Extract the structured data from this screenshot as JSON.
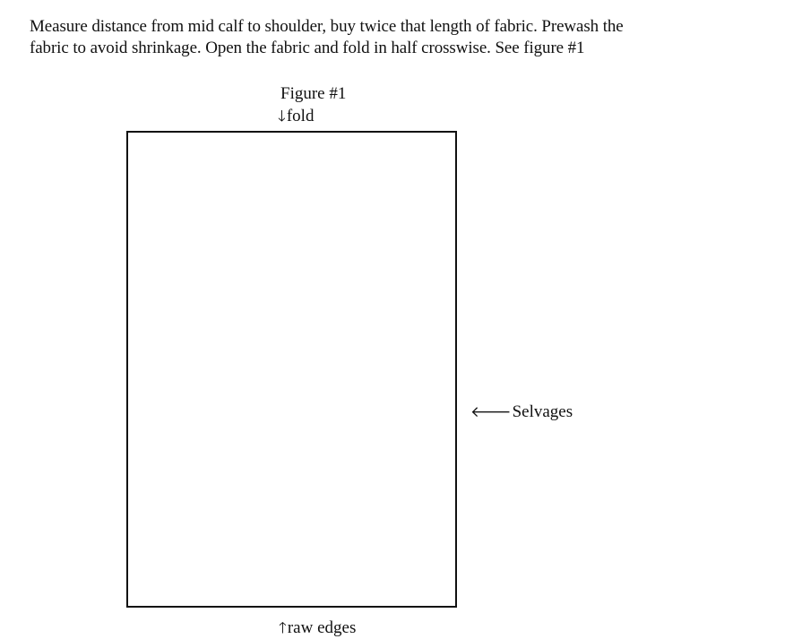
{
  "instructions": {
    "line1": "Measure distance from mid calf to shoulder, buy twice that length of fabric. Prewash the",
    "line2": "fabric to avoid shrinkage. Open the fabric and fold in half crosswise. See figure #1"
  },
  "figure": {
    "title": "Figure #1",
    "labels": {
      "fold": "fold",
      "selvages": "Selvages",
      "raw_edges": "raw edges"
    },
    "arrows": {
      "down": "🡓",
      "left": "🡐",
      "up": "🡑"
    }
  }
}
